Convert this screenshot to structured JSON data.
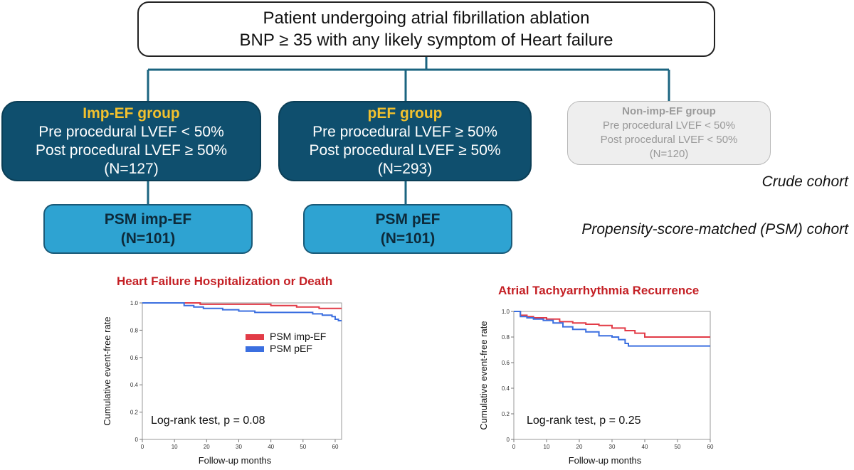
{
  "flowchart": {
    "top": {
      "line1": "Patient undergoing atrial fibrillation ablation",
      "line2": "BNP ≥ 35 with any likely symptom of Heart failure"
    },
    "imp_ef": {
      "title": "Imp-EF group",
      "pre": "Pre procedural LVEF < 50%",
      "post": "Post procedural LVEF ≥ 50%",
      "n": "(N=127)"
    },
    "pef": {
      "title": "pEF group",
      "pre": "Pre procedural LVEF  ≥ 50%",
      "post": "Post procedural LVEF ≥ 50%",
      "n": "(N=293)"
    },
    "non_imp_ef": {
      "title": "Non-imp-EF group",
      "pre": "Pre procedural LVEF < 50%",
      "post": "Post procedural LVEF < 50%",
      "n": "(N=120)"
    },
    "psm_imp_ef": {
      "title": "PSM imp-EF",
      "n": "(N=101)"
    },
    "psm_pef": {
      "title": "PSM pEF",
      "n": "(N=101)"
    },
    "crude_label": "Crude cohort",
    "psm_label": "Propensity-score-matched (PSM) cohort",
    "colors": {
      "group_fill": "#0f4f6e",
      "group_title": "#f2c12e",
      "psm_fill": "#2ea3d2",
      "connector": "#1b6480"
    }
  },
  "chart_data": [
    {
      "type": "line",
      "title": "Heart Failure Hospitalization or Death",
      "xlabel": "Follow-up months",
      "ylabel": "Cumulative event-free rate",
      "xlim": [
        0,
        62
      ],
      "ylim": [
        0,
        1.0
      ],
      "xticks": [
        0,
        10,
        20,
        30,
        40,
        50,
        60
      ],
      "yticks": [
        0,
        0.2,
        0.4,
        0.6,
        0.8,
        1.0
      ],
      "ytick_labels": [
        "0",
        "0.2",
        "0.4",
        "0.6",
        "0.8",
        "1.0"
      ],
      "legend_position": "right",
      "annotation": "Log-rank test, p = 0.08",
      "series": [
        {
          "name": "PSM imp-EF",
          "color": "#e23b47",
          "x": [
            0,
            10,
            18,
            30,
            40,
            48,
            55,
            60,
            62
          ],
          "y": [
            1.0,
            1.0,
            0.99,
            0.99,
            0.98,
            0.97,
            0.96,
            0.96,
            0.96
          ]
        },
        {
          "name": "PSM pEF",
          "color": "#3b6fe0",
          "x": [
            0,
            10,
            13,
            16,
            19,
            25,
            30,
            35,
            40,
            48,
            53,
            56,
            59,
            60,
            61,
            62
          ],
          "y": [
            1.0,
            1.0,
            0.98,
            0.97,
            0.96,
            0.95,
            0.94,
            0.93,
            0.93,
            0.93,
            0.92,
            0.91,
            0.9,
            0.88,
            0.87,
            0.87
          ]
        }
      ]
    },
    {
      "type": "line",
      "title": "Atrial Tachyarrhythmia Recurrence",
      "xlabel": "Follow-up months",
      "ylabel": "Cumulative event-free rate",
      "xlim": [
        0,
        60
      ],
      "ylim": [
        0,
        1.0
      ],
      "xticks": [
        0,
        10,
        20,
        30,
        40,
        50,
        60
      ],
      "yticks": [
        0,
        0.2,
        0.4,
        0.6,
        0.8,
        1.0
      ],
      "ytick_labels": [
        "0",
        "0.2",
        "0.4",
        "0.6",
        "0.8",
        "1.0"
      ],
      "annotation": "Log-rank test, p = 0.25",
      "series": [
        {
          "name": "PSM imp-EF",
          "color": "#e23b47",
          "x": [
            0,
            2,
            4,
            6,
            10,
            14,
            18,
            22,
            26,
            30,
            34,
            37,
            40,
            50,
            60
          ],
          "y": [
            1.0,
            0.97,
            0.96,
            0.95,
            0.94,
            0.92,
            0.91,
            0.9,
            0.89,
            0.87,
            0.85,
            0.83,
            0.8,
            0.8,
            0.8
          ]
        },
        {
          "name": "PSM pEF",
          "color": "#3b6fe0",
          "x": [
            0,
            2,
            4,
            6,
            9,
            12,
            15,
            18,
            22,
            26,
            30,
            32,
            34,
            35,
            40,
            50,
            60
          ],
          "y": [
            1.0,
            0.96,
            0.95,
            0.94,
            0.93,
            0.91,
            0.88,
            0.86,
            0.84,
            0.81,
            0.8,
            0.78,
            0.75,
            0.73,
            0.73,
            0.73,
            0.73
          ]
        }
      ]
    }
  ]
}
